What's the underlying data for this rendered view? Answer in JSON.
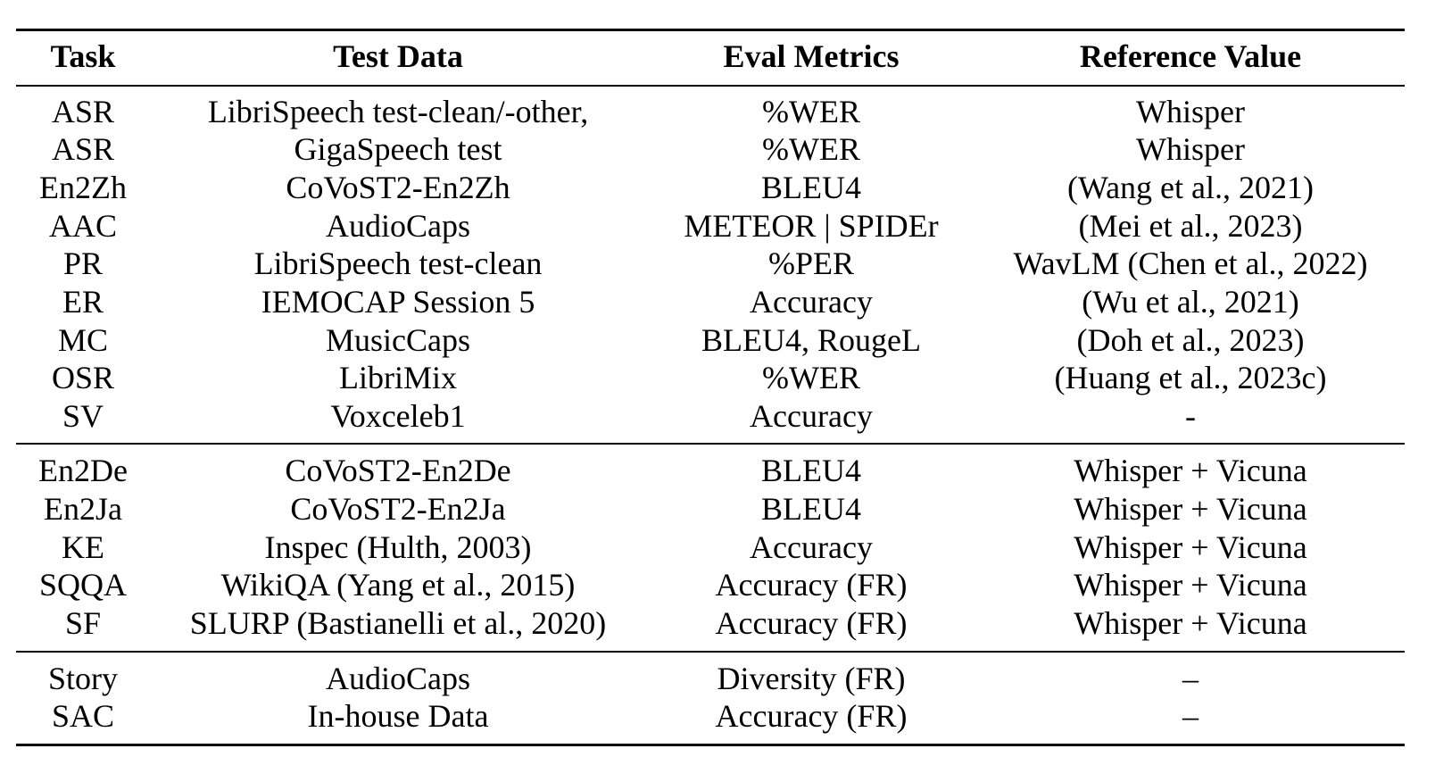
{
  "table": {
    "headers": [
      "Task",
      "Test Data",
      "Eval Metrics",
      "Reference Value"
    ],
    "groups": [
      [
        [
          "ASR",
          "LibriSpeech test-clean/-other,",
          "%WER",
          "Whisper"
        ],
        [
          "ASR",
          "GigaSpeech test",
          "%WER",
          "Whisper"
        ],
        [
          "En2Zh",
          "CoVoST2-En2Zh",
          "BLEU4",
          "(Wang et al., 2021)"
        ],
        [
          "AAC",
          "AudioCaps",
          "METEOR | SPIDEr",
          "(Mei et al., 2023)"
        ],
        [
          "PR",
          "LibriSpeech test-clean",
          "%PER",
          "WavLM (Chen et al., 2022)"
        ],
        [
          "ER",
          "IEMOCAP Session 5",
          "Accuracy",
          "(Wu et al., 2021)"
        ],
        [
          "MC",
          "MusicCaps",
          "BLEU4, RougeL",
          "(Doh et al., 2023)"
        ],
        [
          "OSR",
          "LibriMix",
          "%WER",
          "(Huang et al., 2023c)"
        ],
        [
          "SV",
          "Voxceleb1",
          "Accuracy",
          "-"
        ]
      ],
      [
        [
          "En2De",
          "CoVoST2-En2De",
          "BLEU4",
          "Whisper + Vicuna"
        ],
        [
          "En2Ja",
          "CoVoST2-En2Ja",
          "BLEU4",
          "Whisper + Vicuna"
        ],
        [
          "KE",
          "Inspec (Hulth, 2003)",
          "Accuracy",
          "Whisper + Vicuna"
        ],
        [
          "SQQA",
          "WikiQA (Yang et al., 2015)",
          "Accuracy (FR)",
          "Whisper + Vicuna"
        ],
        [
          "SF",
          "SLURP (Bastianelli et al., 2020)",
          "Accuracy (FR)",
          "Whisper + Vicuna"
        ]
      ],
      [
        [
          "Story",
          "AudioCaps",
          "Diversity (FR)",
          "–"
        ],
        [
          "SAC",
          "In-house Data",
          "Accuracy (FR)",
          "–"
        ]
      ]
    ]
  }
}
